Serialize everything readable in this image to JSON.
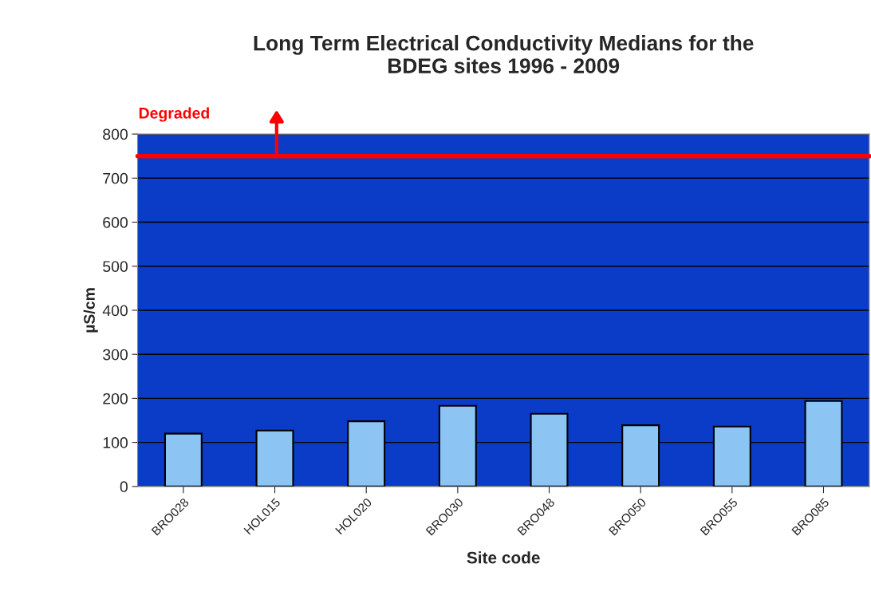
{
  "chart_data": {
    "type": "bar",
    "title": "Long Term Electrical Conductivity Medians for the\nBDEG sites 1996 - 2009",
    "xlabel": "Site code",
    "ylabel": "µS/cm",
    "categories": [
      "BRO028",
      "HOL015",
      "HOL020",
      "BRO030",
      "BRO048",
      "BRO050",
      "BRO055",
      "BRO085"
    ],
    "values": [
      120,
      127,
      148,
      183,
      165,
      139,
      136,
      194
    ],
    "color": "#8cc4f4",
    "ylim": [
      0,
      800
    ],
    "yticks": [
      0,
      100,
      200,
      300,
      400,
      500,
      600,
      700,
      800
    ],
    "grid": "y",
    "legend": false,
    "ref_lines": [
      {
        "axis": "y",
        "value": 750,
        "label": "Degraded",
        "color": "#ff0000"
      }
    ]
  }
}
